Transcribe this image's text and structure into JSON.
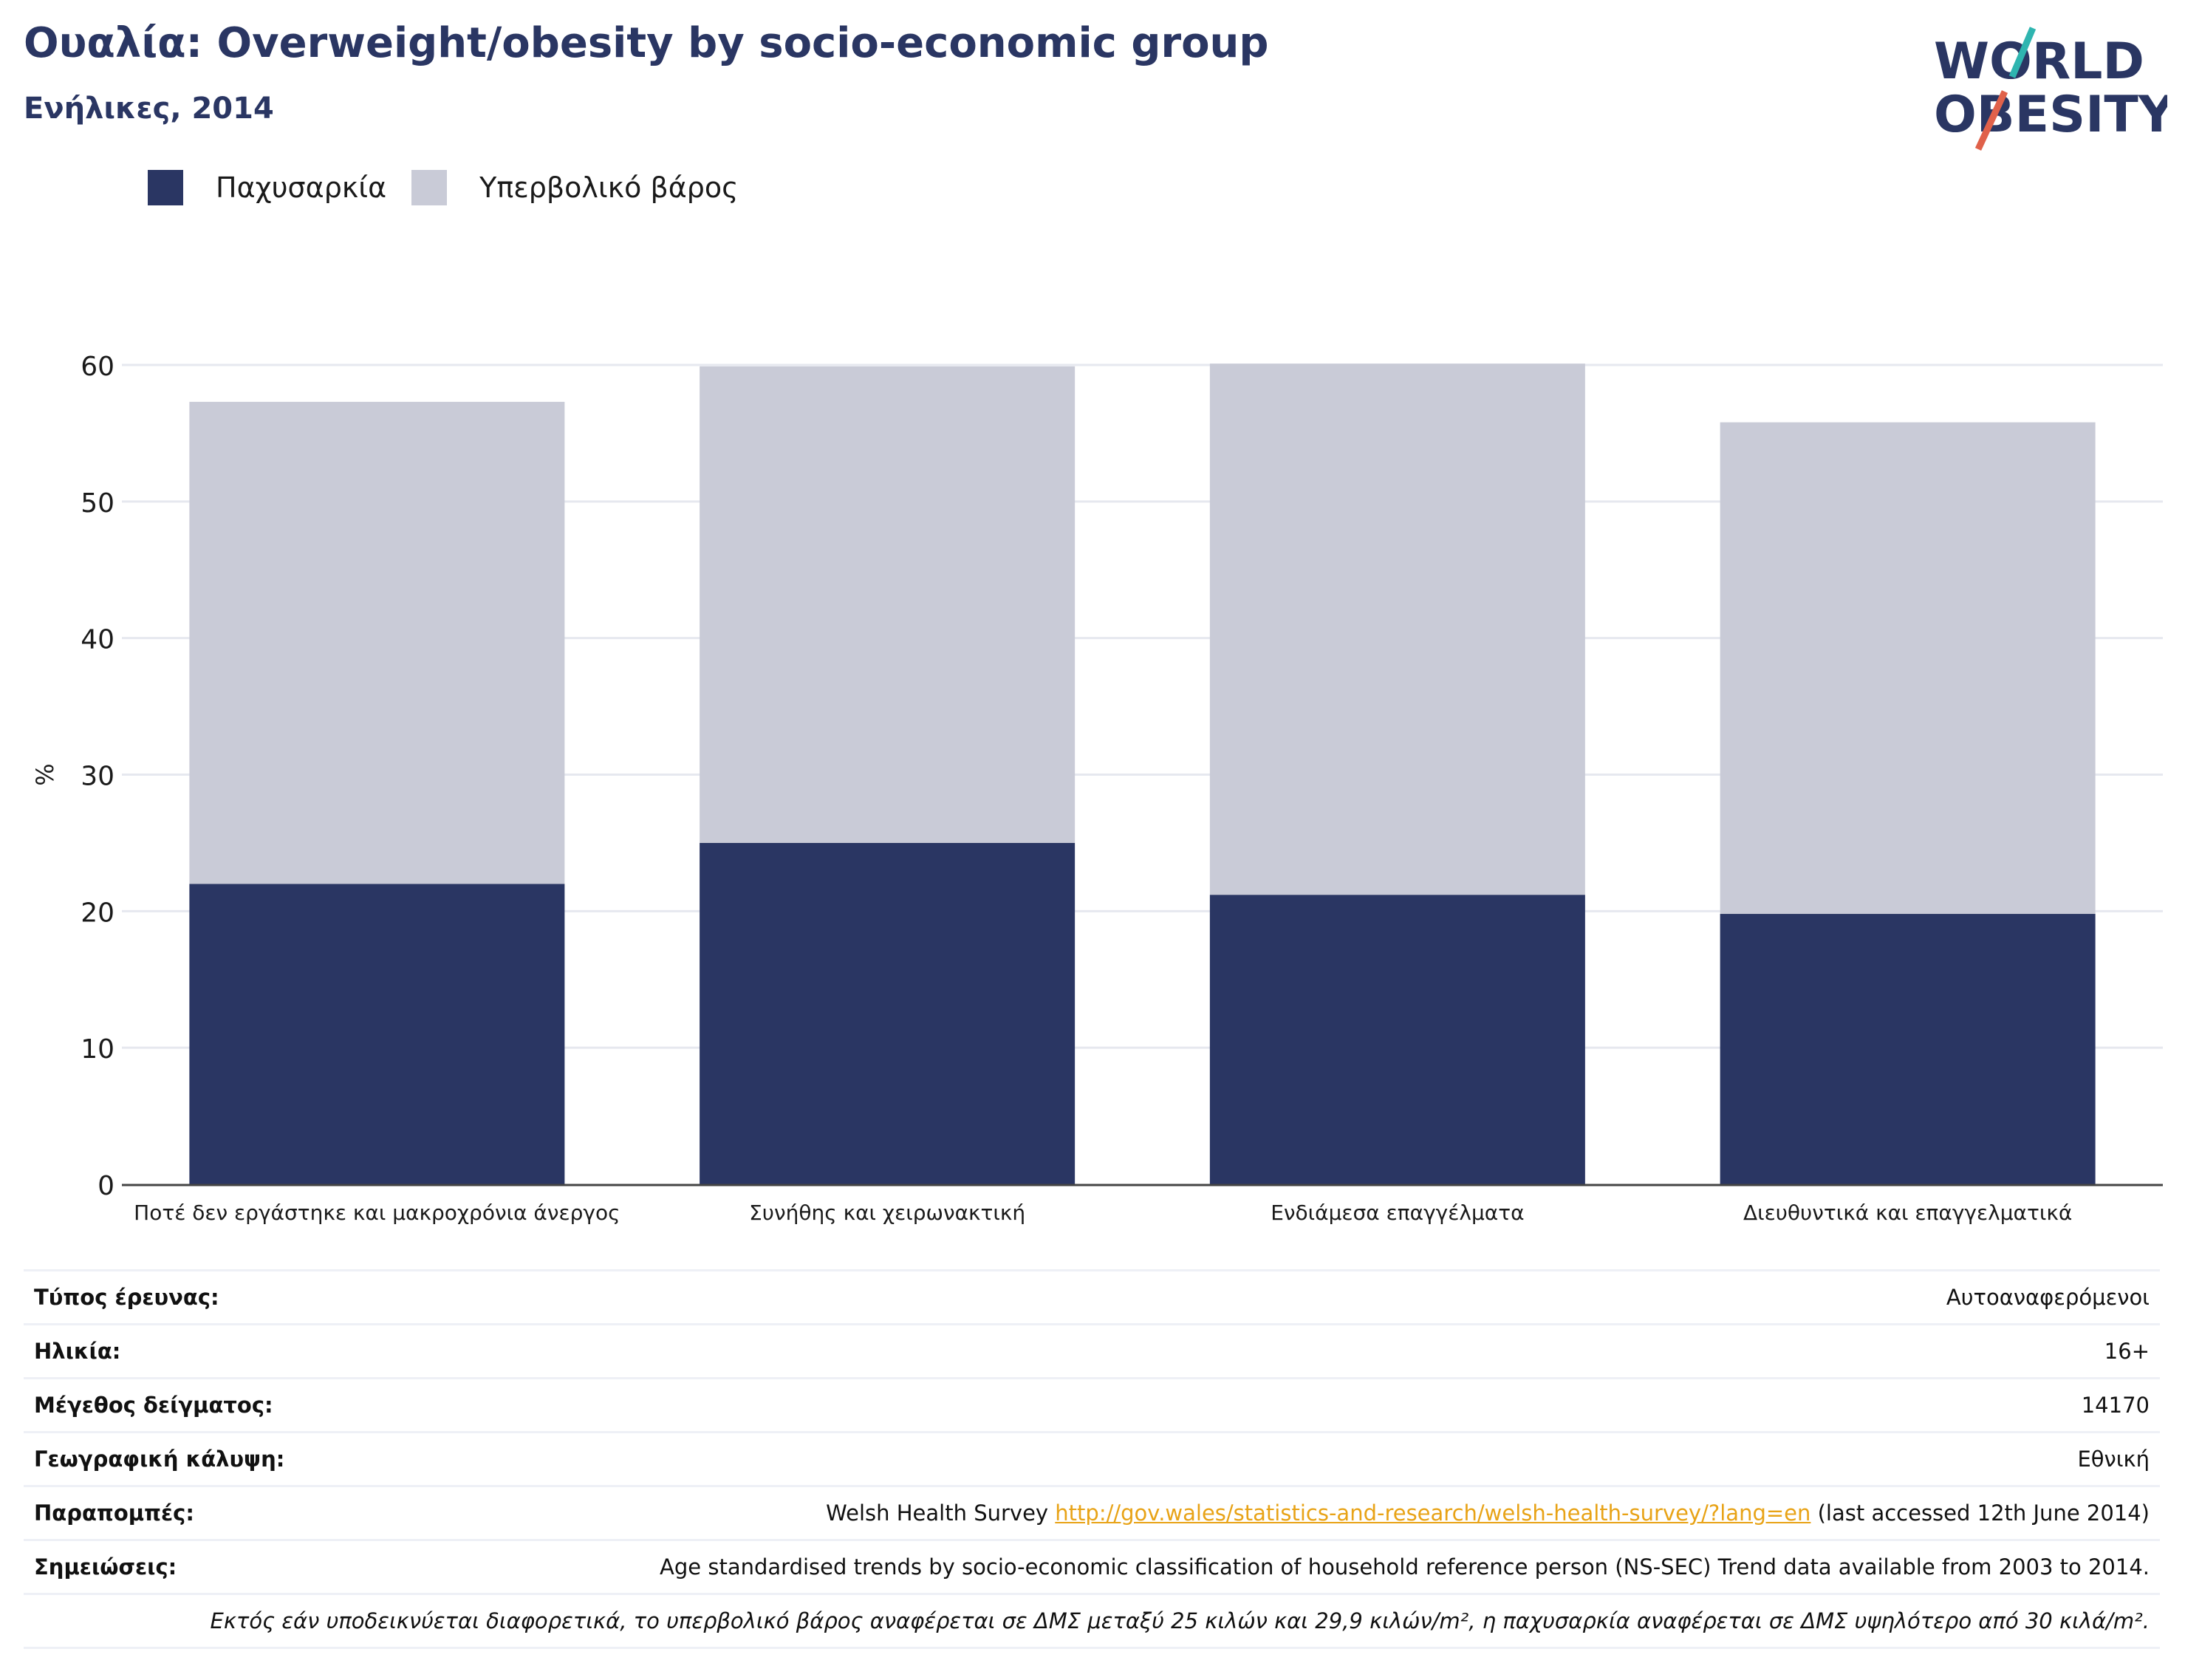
{
  "header": {
    "title": "Ουαλία: Overweight/obesity by socio-economic group",
    "subtitle": "Ενήλικες, 2014"
  },
  "logo": {
    "line1": "WORLD",
    "line2": "OBESITY",
    "name": "world-obesity-logo"
  },
  "legend": [
    {
      "label": "Παχυσαρκία",
      "color": "#2a3663"
    },
    {
      "label": "Υπερβολικό βάρος",
      "color": "#c9cbd7"
    }
  ],
  "chart_data": {
    "type": "bar",
    "stacked": true,
    "title": "",
    "xlabel": "",
    "ylabel": "%",
    "ylim": [
      0,
      60
    ],
    "yticks": [
      0,
      10,
      20,
      30,
      40,
      50,
      60
    ],
    "grid": true,
    "categories": [
      "Ποτέ δεν εργάστηκε και μακροχρόνια άνεργος",
      "Συνήθης και χειρωνακτική",
      "Ενδιάμεσα επαγγέλματα",
      "Διευθυντικά και επαγγελματικά"
    ],
    "series": [
      {
        "name": "Παχυσαρκία",
        "color": "#2a3663",
        "values": [
          22,
          25,
          21.2,
          19.8
        ]
      },
      {
        "name": "Υπερβολικό βάρος",
        "color": "#c9cbd7",
        "values": [
          35.3,
          34.9,
          38.9,
          36
        ]
      }
    ]
  },
  "meta": {
    "survey_type_label": "Τύπος έρευνας:",
    "survey_type_value": "Αυτοαναφερόμενοι",
    "age_label": "Ηλικία:",
    "age_value": "16+",
    "sample_label": "Μέγεθος δείγματος:",
    "sample_value": "14170",
    "coverage_label": "Γεωγραφική κάλυψη:",
    "coverage_value": "Εθνική",
    "refs_label": "Παραπομπές:",
    "refs_prefix": "Welsh Health Survey ",
    "refs_link": "http://gov.wales/statistics-and-research/welsh-health-survey/?lang=en",
    "refs_suffix": " (last accessed 12th June 2014)",
    "notes_label": "Σημειώσεις:",
    "notes_value": "Age standardised trends by socio-economic classification of household reference person (NS-SEC) Trend data available from 2003 to 2014.",
    "footnote": "Εκτός εάν υποδεικνύεται διαφορετικά, το υπερβολικό βάρος αναφέρεται σε ΔΜΣ μεταξύ 25 κιλών και 29,9 κιλών/m², η παχυσαρκία αναφέρεται σε ΔΜΣ υψηλότερο από 30 κιλά/m²."
  }
}
